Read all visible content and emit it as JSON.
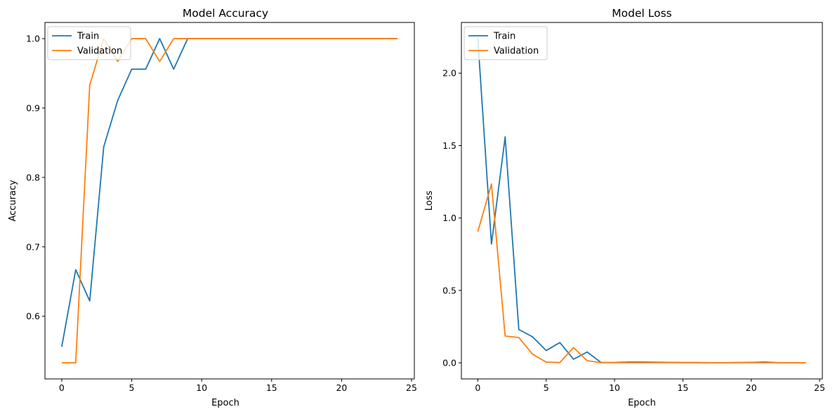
{
  "chart_data": [
    {
      "type": "line",
      "title": "Model Accuracy",
      "xlabel": "Epoch",
      "ylabel": "Accuracy",
      "xlim": [
        -1.2,
        25.2
      ],
      "ylim": [
        0.5097,
        1.0233
      ],
      "xticks": [
        0,
        5,
        10,
        15,
        20,
        25
      ],
      "yticks": [
        0.6,
        0.7,
        0.8,
        0.9,
        1.0
      ],
      "ytick_labels": [
        "0.6",
        "0.7",
        "0.8",
        "0.9",
        "1.0"
      ],
      "grid": false,
      "legend": "upper left",
      "x": [
        0,
        1,
        2,
        3,
        4,
        5,
        6,
        7,
        8,
        9,
        10,
        11,
        12,
        13,
        14,
        15,
        16,
        17,
        18,
        19,
        20,
        21,
        22,
        23,
        24
      ],
      "series": [
        {
          "name": "Train",
          "color": "#1f77b4",
          "values": [
            0.556,
            0.667,
            0.622,
            0.844,
            0.911,
            0.956,
            0.956,
            1.0,
            0.956,
            1.0,
            1.0,
            1.0,
            1.0,
            1.0,
            1.0,
            1.0,
            1.0,
            1.0,
            1.0,
            1.0,
            1.0,
            1.0,
            1.0,
            1.0,
            1.0
          ]
        },
        {
          "name": "Validation",
          "color": "#ff7f0e",
          "values": [
            0.533,
            0.533,
            0.933,
            1.0,
            0.967,
            1.0,
            1.0,
            0.967,
            1.0,
            1.0,
            1.0,
            1.0,
            1.0,
            1.0,
            1.0,
            1.0,
            1.0,
            1.0,
            1.0,
            1.0,
            1.0,
            1.0,
            1.0,
            1.0,
            1.0
          ]
        }
      ]
    },
    {
      "type": "line",
      "title": "Model Loss",
      "xlabel": "Epoch",
      "ylabel": "Loss",
      "xlim": [
        -1.2,
        25.2
      ],
      "ylim": [
        -0.111,
        2.35
      ],
      "xticks": [
        0,
        5,
        10,
        15,
        20,
        25
      ],
      "yticks": [
        0.0,
        0.5,
        1.0,
        1.5,
        2.0
      ],
      "ytick_labels": [
        "0.0",
        "0.5",
        "1.0",
        "1.5",
        "2.0"
      ],
      "grid": false,
      "legend": "upper left",
      "x": [
        0,
        1,
        2,
        3,
        4,
        5,
        6,
        7,
        8,
        9,
        10,
        11,
        12,
        13,
        14,
        15,
        16,
        17,
        18,
        19,
        20,
        21,
        22,
        23,
        24
      ],
      "series": [
        {
          "name": "Train",
          "color": "#1f77b4",
          "values": [
            2.24,
            0.82,
            1.56,
            0.23,
            0.18,
            0.085,
            0.14,
            0.025,
            0.075,
            0.003,
            0.002,
            0.005,
            0.005,
            0.004,
            0.003,
            0.002,
            0.002,
            0.001,
            0.001,
            0.002,
            0.003,
            0.005,
            0.001,
            0.001,
            0.001
          ]
        },
        {
          "name": "Validation",
          "color": "#ff7f0e",
          "values": [
            0.905,
            1.235,
            0.185,
            0.175,
            0.06,
            0.005,
            0.002,
            0.105,
            0.015,
            0.001,
            0.001,
            0.001,
            0.001,
            0.001,
            0.001,
            0.001,
            0.001,
            0.001,
            0.001,
            0.001,
            0.001,
            0.001,
            0.001,
            0.001,
            0.001
          ]
        }
      ]
    }
  ]
}
